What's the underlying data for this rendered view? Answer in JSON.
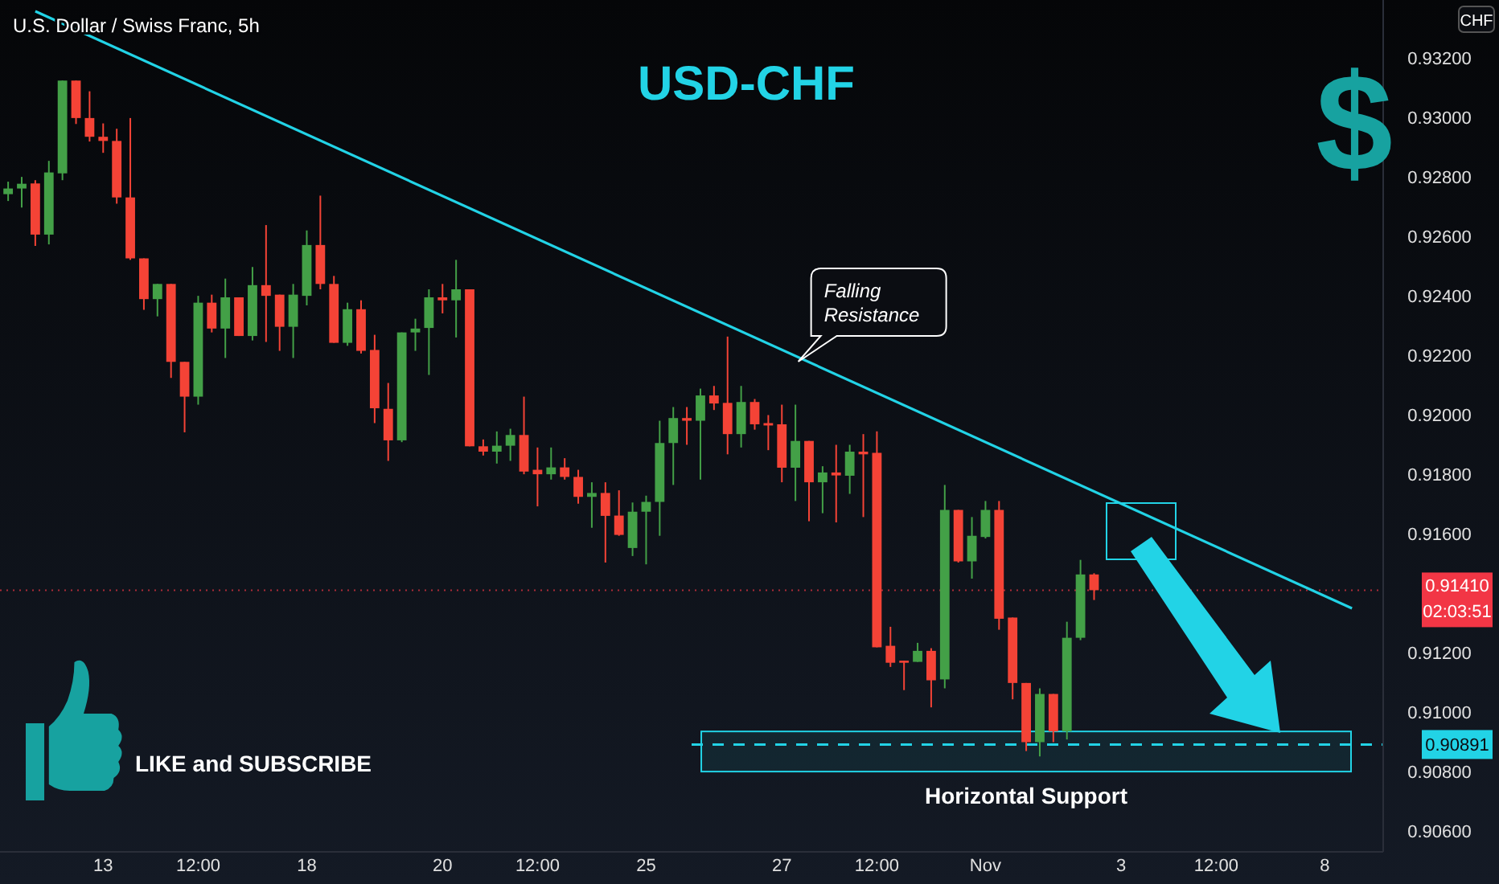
{
  "chart_data": {
    "type": "candlestick",
    "title": "USD-CHF",
    "subtitle": "U.S. Dollar / Swiss Franc, 5h",
    "ylabel": "CHF",
    "categories": [
      null,
      null,
      null,
      null,
      null,
      null,
      null,
      "13",
      null,
      null,
      null,
      null,
      null,
      null,
      "12:00",
      null,
      null,
      null,
      null,
      null,
      null,
      null,
      "18",
      null,
      null,
      null,
      null,
      null,
      null,
      null,
      null,
      null,
      "20",
      null,
      null,
      null,
      null,
      null,
      null,
      "12:00",
      null,
      null,
      null,
      null,
      null,
      null,
      null,
      "25",
      null,
      null,
      null,
      null,
      null,
      null,
      null,
      null,
      null,
      "27",
      null,
      null,
      null,
      null,
      null,
      null,
      "12:00",
      null,
      null,
      null,
      null,
      null,
      null,
      null,
      "Nov",
      null,
      null,
      null,
      null,
      null,
      null,
      null,
      null,
      null,
      "3",
      null,
      null,
      null,
      null,
      null,
      null,
      "12:00",
      null,
      null,
      null,
      null,
      null,
      null,
      null,
      "8",
      null,
      null,
      null,
      null
    ],
    "ohlc": [
      [
        0.92742,
        0.92784,
        0.92719,
        0.92761
      ],
      [
        0.92761,
        0.928,
        0.92697,
        0.92777
      ],
      [
        0.92778,
        0.92789,
        0.92568,
        0.92606
      ],
      [
        0.92606,
        0.92854,
        0.92573,
        0.92815
      ],
      [
        0.92812,
        0.93124,
        0.92789,
        0.93124
      ],
      [
        0.93124,
        0.93124,
        0.92978,
        0.92998
      ],
      [
        0.92998,
        0.93088,
        0.92919,
        0.92935
      ],
      [
        0.92935,
        0.9298,
        0.92881,
        0.92921
      ],
      [
        0.92921,
        0.92962,
        0.9271,
        0.92731
      ],
      [
        0.92731,
        0.92998,
        0.92521,
        0.92526
      ],
      [
        0.92526,
        0.92526,
        0.92353,
        0.92389
      ],
      [
        0.92389,
        0.9244,
        0.92331,
        0.9244
      ],
      [
        0.9244,
        0.9244,
        0.92124,
        0.92178
      ],
      [
        0.92178,
        0.92178,
        0.91941,
        0.92061
      ],
      [
        0.92061,
        0.924,
        0.92034,
        0.92377
      ],
      [
        0.92377,
        0.92404,
        0.92277,
        0.9229
      ],
      [
        0.9229,
        0.92458,
        0.92191,
        0.92395
      ],
      [
        0.92395,
        0.92395,
        0.92265,
        0.92265
      ],
      [
        0.92265,
        0.92497,
        0.9225,
        0.92436
      ],
      [
        0.92436,
        0.92638,
        0.92245,
        0.924
      ],
      [
        0.92404,
        0.92404,
        0.92215,
        0.92296
      ],
      [
        0.92296,
        0.9244,
        0.92191,
        0.92404
      ],
      [
        0.924,
        0.9262,
        0.92368,
        0.92571
      ],
      [
        0.92571,
        0.92737,
        0.92422,
        0.9244
      ],
      [
        0.9244,
        0.92467,
        0.92242,
        0.92242
      ],
      [
        0.92242,
        0.92377,
        0.92232,
        0.92355
      ],
      [
        0.92355,
        0.92385,
        0.92206,
        0.92215
      ],
      [
        0.92218,
        0.92269,
        0.91972,
        0.92022
      ],
      [
        0.9202,
        0.92107,
        0.91845,
        0.91914
      ],
      [
        0.91914,
        0.92277,
        0.91908,
        0.92277
      ],
      [
        0.92277,
        0.92323,
        0.92215,
        0.9229
      ],
      [
        0.92292,
        0.92422,
        0.92134,
        0.92395
      ],
      [
        0.92395,
        0.9244,
        0.92341,
        0.92385
      ],
      [
        0.92385,
        0.92521,
        0.9226,
        0.92422
      ],
      [
        0.92422,
        0.92422,
        0.91894,
        0.91894
      ],
      [
        0.91894,
        0.91917,
        0.91863,
        0.91876
      ],
      [
        0.91876,
        0.91944,
        0.91836,
        0.91896
      ],
      [
        0.91896,
        0.91953,
        0.91845,
        0.91932
      ],
      [
        0.91932,
        0.92061,
        0.918,
        0.91809
      ],
      [
        0.91815,
        0.9189,
        0.91692,
        0.918
      ],
      [
        0.918,
        0.9189,
        0.91782,
        0.91823
      ],
      [
        0.91823,
        0.91854,
        0.91782,
        0.91791
      ],
      [
        0.91791,
        0.91815,
        0.91701,
        0.91724
      ],
      [
        0.91724,
        0.91773,
        0.9162,
        0.91737
      ],
      [
        0.91737,
        0.91773,
        0.91503,
        0.9166
      ],
      [
        0.91661,
        0.91746,
        0.91593,
        0.91596
      ],
      [
        0.91552,
        0.91705,
        0.91525,
        0.91674
      ],
      [
        0.91674,
        0.91728,
        0.91497,
        0.91707
      ],
      [
        0.91707,
        0.9198,
        0.91593,
        0.91905
      ],
      [
        0.91905,
        0.92026,
        0.91764,
        0.91989
      ],
      [
        0.91989,
        0.92026,
        0.91899,
        0.9198
      ],
      [
        0.9198,
        0.92088,
        0.91782,
        0.92065
      ],
      [
        0.92065,
        0.92097,
        0.92016,
        0.92038
      ],
      [
        0.9204,
        0.92263,
        0.91867,
        0.91935
      ],
      [
        0.91935,
        0.92097,
        0.9189,
        0.92043
      ],
      [
        0.92043,
        0.92053,
        0.9195,
        0.91968
      ],
      [
        0.91972,
        0.91999,
        0.91881,
        0.91964
      ],
      [
        0.91968,
        0.92034,
        0.91773,
        0.91822
      ],
      [
        0.91822,
        0.92034,
        0.9171,
        0.91912
      ],
      [
        0.91912,
        0.91912,
        0.91642,
        0.91773
      ],
      [
        0.91773,
        0.91827,
        0.91669,
        0.91806
      ],
      [
        0.91806,
        0.91899,
        0.91638,
        0.91796
      ],
      [
        0.91795,
        0.91899,
        0.91734,
        0.91876
      ],
      [
        0.91876,
        0.91935,
        0.91656,
        0.91867
      ],
      [
        0.91872,
        0.91944,
        0.91218,
        0.91218
      ],
      [
        0.91223,
        0.91287,
        0.91152,
        0.91166
      ],
      [
        0.91173,
        0.91173,
        0.91074,
        0.91166
      ],
      [
        0.91169,
        0.91233,
        0.91169,
        0.91206
      ],
      [
        0.91206,
        0.91215,
        0.91016,
        0.91107
      ],
      [
        0.9111,
        0.91764,
        0.9108,
        0.9168
      ],
      [
        0.9168,
        0.9168,
        0.91503,
        0.91507
      ],
      [
        0.91507,
        0.91656,
        0.91449,
        0.91593
      ],
      [
        0.91589,
        0.9171,
        0.91584,
        0.9168
      ],
      [
        0.9168,
        0.9171,
        0.91277,
        0.91314
      ],
      [
        0.91318,
        0.91318,
        0.91043,
        0.91098
      ],
      [
        0.91098,
        0.91098,
        0.90869,
        0.90899
      ],
      [
        0.90899,
        0.9108,
        0.90851,
        0.91061
      ],
      [
        0.91061,
        0.91061,
        0.90899,
        0.90935
      ],
      [
        0.90935,
        0.91304,
        0.90908,
        0.9125
      ],
      [
        0.9125,
        0.91512,
        0.91242,
        0.91463
      ],
      [
        0.91463,
        0.91467,
        0.91377,
        0.9141
      ],
      null,
      null,
      null,
      null,
      null,
      null,
      null,
      null,
      null,
      null,
      null,
      null,
      null,
      null,
      null,
      null,
      null,
      null,
      null,
      null,
      null
    ],
    "colors": [
      "#43a047",
      "#43a047",
      "#f44336",
      "#43a047",
      "#43a047",
      "#f44336",
      "#f44336",
      "#f44336",
      "#f44336",
      "#f44336",
      "#f44336",
      "#43a047",
      "#f44336",
      "#f44336",
      "#43a047",
      "#f44336",
      "#43a047",
      "#f44336",
      "#43a047",
      "#f44336",
      "#f44336",
      "#43a047",
      "#43a047",
      "#f44336",
      "#f44336",
      "#43a047",
      "#f44336",
      "#f44336",
      "#f44336",
      "#43a047",
      "#43a047",
      "#43a047",
      "#f44336",
      "#43a047",
      "#f44336",
      "#f44336",
      "#43a047",
      "#43a047",
      "#f44336",
      "#f44336",
      "#43a047",
      "#f44336",
      "#f44336",
      "#43a047",
      "#f44336",
      "#f44336",
      "#43a047",
      "#43a047",
      "#43a047",
      "#43a047",
      "#f44336",
      "#43a047",
      "#f44336",
      "#f44336",
      "#43a047",
      "#f44336",
      "#f44336",
      "#f44336",
      "#43a047",
      "#f44336",
      "#43a047",
      "#f44336",
      "#43a047",
      "#f44336",
      "#f44336",
      "#f44336",
      "#f44336",
      "#43a047",
      "#f44336",
      "#43a047",
      "#f44336",
      "#43a047",
      "#43a047",
      "#f44336",
      "#f44336",
      "#f44336",
      "#43a047",
      "#f44336",
      "#43a047",
      "#43a047",
      "#f44336",
      null,
      null,
      null,
      null,
      null,
      null,
      null,
      null,
      null,
      null,
      null,
      null,
      null,
      null,
      null,
      null,
      null,
      null,
      null,
      null,
      null
    ],
    "series": [
      {
        "type": "line",
        "color": "#22d3e6",
        "values": [
          null,
          null,
          0.93357,
          null,
          null,
          null,
          null,
          null,
          null,
          null,
          null,
          null,
          null,
          null,
          null,
          null,
          null,
          null,
          null,
          null,
          null,
          null,
          null,
          null,
          null,
          null,
          null,
          null,
          null,
          null,
          null,
          null,
          null,
          null,
          null,
          null,
          null,
          null,
          null,
          null,
          null,
          null,
          null,
          null,
          null,
          null,
          null,
          null,
          null,
          null,
          null,
          null,
          null,
          null,
          null,
          null,
          null,
          null,
          null,
          null,
          null,
          null,
          null,
          null,
          null,
          null,
          null,
          null,
          null,
          null,
          null,
          null,
          null,
          null,
          null,
          null,
          null,
          null,
          null,
          null,
          null,
          null,
          null,
          null,
          null,
          null,
          null,
          null,
          null,
          null,
          null,
          null,
          null,
          null,
          null,
          null,
          null,
          null,
          null,
          0.91349,
          null,
          null
        ]
      }
    ],
    "ylim": [
      0.9053,
      0.93395
    ],
    "yticks": [
      {
        "value": 0.906,
        "label": "0.90600"
      },
      {
        "value": 0.908,
        "label": "0.90800"
      },
      {
        "value": 0.91,
        "label": "0.91000"
      },
      {
        "value": 0.912,
        "label": "0.91200"
      },
      {
        "value": 0.916,
        "label": "0.91600"
      },
      {
        "value": 0.918,
        "label": "0.91800"
      },
      {
        "value": 0.92,
        "label": "0.92000"
      },
      {
        "value": 0.922,
        "label": "0.92200"
      },
      {
        "value": 0.924,
        "label": "0.92400"
      },
      {
        "value": 0.926,
        "label": "0.92600"
      },
      {
        "value": 0.928,
        "label": "0.92800"
      },
      {
        "value": 0.93,
        "label": "0.93000"
      },
      {
        "value": 0.932,
        "label": "0.93200"
      }
    ],
    "ref_lines": [
      {
        "axis": "y",
        "value": 0.9141,
        "label": "0.91410",
        "color": "#f23645",
        "line_style": "dotted"
      },
      {
        "axis": "y",
        "value": 0.90891,
        "label": "0.90891",
        "color": "#22d3e6",
        "line_style": "dashed"
      }
    ],
    "bands": [
      {
        "axis": "y",
        "from": 0.908,
        "to": 0.90935,
        "label": "Horizontal Support",
        "color": "#22d3e6"
      }
    ],
    "annotations": [
      "Falling Resistance",
      "LIKE and SUBSCRIBE",
      "$",
      "02:03:51"
    ]
  }
}
